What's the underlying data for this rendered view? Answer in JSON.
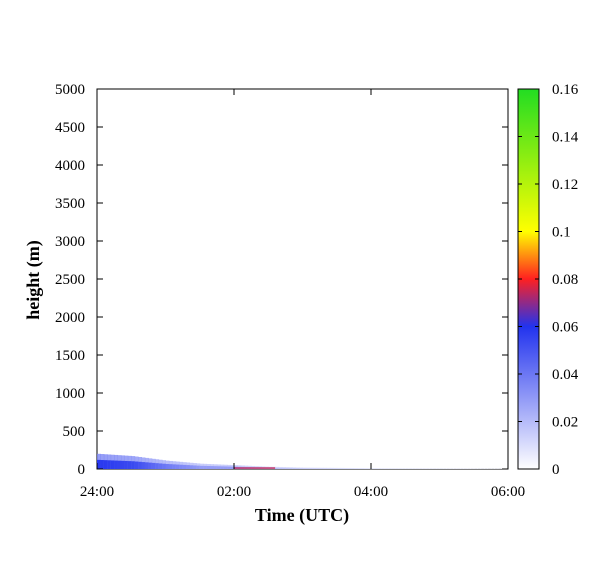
{
  "chart_data": {
    "type": "heatmap",
    "title": "",
    "xlabel": "Time (UTC)",
    "ylabel": "height (m)",
    "x_ticks": [
      "24:00",
      "02:00",
      "04:00",
      "06:00"
    ],
    "x_range_hours": [
      0,
      6
    ],
    "y_ticks": [
      "0",
      "500",
      "1000",
      "1500",
      "2000",
      "2500",
      "3000",
      "3500",
      "4000",
      "4500",
      "5000"
    ],
    "ylim": [
      0,
      5000
    ],
    "colorbar": {
      "ticks": [
        "0",
        "0.02",
        "0.04",
        "0.06",
        "0.08",
        "0.1",
        "0.12",
        "0.14",
        "0.16"
      ],
      "range": [
        0,
        0.16
      ],
      "stops": [
        {
          "value": 0,
          "color": "#ffffff"
        },
        {
          "value": 0.06,
          "color": "#2233ee"
        },
        {
          "value": 0.08,
          "color": "#ff2020"
        },
        {
          "value": 0.1,
          "color": "#ffff00"
        },
        {
          "value": 0.16,
          "color": "#22dd22"
        }
      ]
    },
    "layer": {
      "description_points": [
        {
          "t": 0.0,
          "top": 200,
          "value": 0.06
        },
        {
          "t": 0.5,
          "top": 170,
          "value": 0.055
        },
        {
          "t": 1.0,
          "top": 110,
          "value": 0.04
        },
        {
          "t": 1.5,
          "top": 70,
          "value": 0.03
        },
        {
          "t": 2.0,
          "top": 50,
          "value": 0.03
        },
        {
          "t": 2.5,
          "top": 30,
          "value": 0.02
        },
        {
          "t": 3.0,
          "top": 20,
          "value": 0.015
        },
        {
          "t": 4.0,
          "top": 10,
          "value": 0.01
        },
        {
          "t": 6.0,
          "top": 5,
          "value": 0.005
        }
      ]
    }
  }
}
